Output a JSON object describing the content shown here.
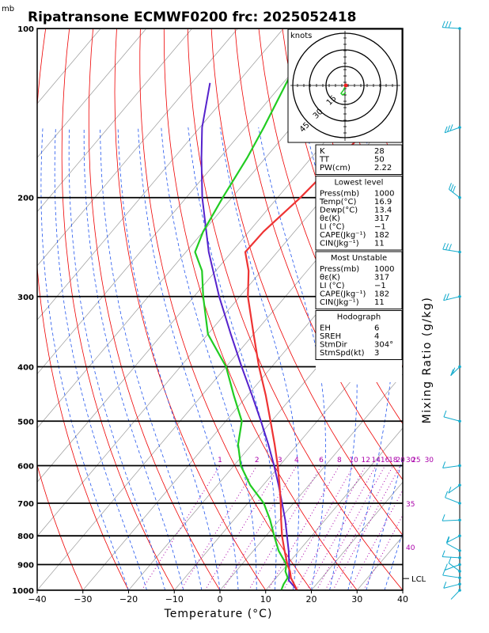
{
  "header": {
    "unit_label": "mb",
    "title": "Ripatransone ECMWF0200 frc: 2025052418"
  },
  "chart_data": {
    "type": "skew-t",
    "xlabel": "Temperature (°C)",
    "ylabel_right": "Mixing Ratio (g/kg)",
    "x_ticks": [
      "−40",
      "−30",
      "−20",
      "−10",
      "0",
      "10",
      "20",
      "30",
      "40"
    ],
    "x_range": [
      -40,
      40
    ],
    "p_range": [
      1000,
      100
    ],
    "pressure_levels": [
      "100",
      "200",
      "300",
      "400",
      "500",
      "600",
      "700",
      "800",
      "900",
      "1000"
    ],
    "mixing_ratio_labels": [
      "1",
      "2",
      "3",
      "4",
      "6",
      "8",
      "10",
      "12",
      "14",
      "16",
      "18",
      "20",
      "25",
      "30"
    ],
    "theta_labels": [
      "30",
      "35",
      "40"
    ],
    "lcl_label": "LCL",
    "temperature": {
      "p": [
        1000,
        950,
        925,
        900,
        850,
        800,
        750,
        700,
        650,
        600,
        550,
        500,
        450,
        400,
        350,
        300,
        270,
        250,
        230,
        200,
        170,
        150,
        120,
        100
      ],
      "t": [
        16.9,
        13.2,
        11.8,
        10.0,
        6.8,
        3.5,
        0.4,
        -2.8,
        -6.4,
        -10.4,
        -15.0,
        -20.2,
        -26.0,
        -32.8,
        -40.0,
        -48.2,
        -52.8,
        -57.0,
        -56.8,
        -55.0,
        -53.8,
        -53.0,
        -52.0,
        -50.0
      ]
    },
    "dewpoint": {
      "p": [
        1000,
        975,
        950,
        925,
        900,
        850,
        800,
        750,
        700,
        650,
        600,
        550,
        500,
        450,
        400,
        350,
        300,
        270,
        250,
        230,
        200,
        170,
        150,
        120,
        100
      ],
      "td": [
        13.4,
        12.8,
        12.5,
        10.8,
        9.8,
        5.5,
        1.8,
        -2.0,
        -6.5,
        -12.8,
        -18.5,
        -23.0,
        -26.5,
        -33.0,
        -40.0,
        -50.0,
        -58.0,
        -63.0,
        -68.0,
        -70.0,
        -72.0,
        -74.0,
        -76.0,
        -80.0,
        -84.0
      ]
    },
    "parcel": {
      "p": [
        1000,
        960,
        950,
        900,
        850,
        800,
        750,
        700,
        650,
        600,
        550,
        500,
        450,
        400,
        350,
        300,
        250,
        200,
        170,
        150,
        125
      ],
      "t": [
        16.9,
        13.2,
        12.8,
        10.4,
        7.7,
        4.6,
        1.3,
        -2.5,
        -6.6,
        -11.2,
        -16.4,
        -22.3,
        -29.0,
        -36.6,
        -45.0,
        -54.5,
        -65.0,
        -76.5,
        -84.0,
        -89.5,
        -96.0
      ]
    },
    "wind_barbs_profile": {
      "p": [
        1000,
        975,
        950,
        925,
        900,
        875,
        850,
        800,
        750,
        700,
        650,
        600,
        500,
        400,
        300,
        250,
        200,
        150,
        100
      ],
      "knots": [
        3,
        5,
        7,
        8,
        10,
        10,
        8,
        10,
        12,
        10,
        10,
        12,
        10,
        15,
        20,
        25,
        30,
        25,
        25
      ]
    },
    "hodograph": {
      "title": "knots",
      "ring_labels": [
        "15",
        "30",
        "45"
      ]
    },
    "indices": {
      "rows": [
        {
          "label": "K",
          "value": "28"
        },
        {
          "label": "TT",
          "value": "50"
        },
        {
          "label": "PW(cm)",
          "value": "2.22"
        }
      ]
    },
    "lowest_level": {
      "heading": "Lowest level",
      "rows": [
        {
          "label": "Press(mb)",
          "value": "1000"
        },
        {
          "label": "Temp(°C)",
          "value": "16.9"
        },
        {
          "label": "Dewp(°C)",
          "value": "13.4"
        },
        {
          "label": "θε(K)",
          "value": "317"
        },
        {
          "label": "LI (°C)",
          "value": "−1"
        },
        {
          "label": "CAPE(Jkg⁻¹)",
          "value": "182"
        },
        {
          "label": "CIN(Jkg⁻¹)",
          "value": "11"
        }
      ]
    },
    "most_unstable": {
      "heading": "Most Unstable",
      "rows": [
        {
          "label": "Press(mb)",
          "value": "1000"
        },
        {
          "label": "θε(K)",
          "value": "317"
        },
        {
          "label": "LI (°C)",
          "value": "−1"
        },
        {
          "label": "CAPE(Jkg⁻¹)",
          "value": "182"
        },
        {
          "label": "CIN(Jkg⁻¹)",
          "value": "11"
        }
      ]
    },
    "hodograph_params": {
      "heading": "Hodograph",
      "rows": [
        {
          "label": "EH",
          "value": "6"
        },
        {
          "label": "SREH",
          "value": "4"
        },
        {
          "label": "StmDir",
          "value": "304°"
        },
        {
          "label": "StmSpd(kt)",
          "value": "3"
        }
      ]
    },
    "colors": {
      "temperature": "#ee3333",
      "dewpoint": "#22cc22",
      "parcel": "#5522cc",
      "isotherm": "#999999",
      "dry_adiabat": "#ee0000",
      "moist_adiabat": "#2255ee",
      "mixing_ratio": "#aa00aa",
      "wind_barb": "#11aacc"
    }
  }
}
